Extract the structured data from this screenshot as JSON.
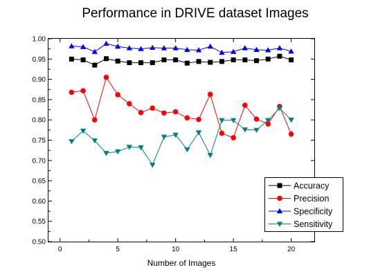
{
  "chart_data": {
    "type": "line",
    "title": "Performance in DRIVE dataset Images",
    "xlabel": "Number of Images",
    "ylabel": "",
    "xlim": [
      -1,
      22
    ],
    "ylim": [
      0.5,
      1.0
    ],
    "x_ticks": [
      0,
      5,
      10,
      15,
      20
    ],
    "y_ticks": [
      0.5,
      0.55,
      0.6,
      0.65,
      0.7,
      0.75,
      0.8,
      0.85,
      0.9,
      0.95,
      1.0
    ],
    "x_tick_labels": [
      "0",
      "5",
      "10",
      "15",
      "20"
    ],
    "y_tick_labels": [
      "0.50",
      "0.55",
      "0.60",
      "0.65",
      "0.70",
      "0.75",
      "0.80",
      "0.85",
      "0.90",
      "0.95",
      "1.00"
    ],
    "grid": false,
    "legend_position": "bottom-right",
    "x": [
      1,
      2,
      3,
      4,
      5,
      6,
      7,
      8,
      9,
      10,
      11,
      12,
      13,
      14,
      15,
      16,
      17,
      18,
      19,
      20
    ],
    "series": [
      {
        "name": "Accuracy",
        "color": "#000000",
        "marker": "square",
        "values": [
          0.95,
          0.948,
          0.935,
          0.951,
          0.945,
          0.941,
          0.941,
          0.941,
          0.948,
          0.948,
          0.94,
          0.944,
          0.942,
          0.944,
          0.948,
          0.948,
          0.946,
          0.95,
          0.957,
          0.948
        ]
      },
      {
        "name": "Precision",
        "color": "#ff0000",
        "marker": "circle",
        "values": [
          0.868,
          0.872,
          0.8,
          0.905,
          0.862,
          0.84,
          0.818,
          0.829,
          0.817,
          0.82,
          0.805,
          0.801,
          0.863,
          0.767,
          0.756,
          0.836,
          0.802,
          0.79,
          0.833,
          0.765
        ]
      },
      {
        "name": "Specificity",
        "color": "#0000ff",
        "marker": "triangle-up",
        "values": [
          0.982,
          0.98,
          0.968,
          0.988,
          0.981,
          0.977,
          0.975,
          0.978,
          0.977,
          0.977,
          0.973,
          0.972,
          0.981,
          0.966,
          0.968,
          0.977,
          0.973,
          0.972,
          0.977,
          0.969
        ]
      },
      {
        "name": "Sensitivity",
        "color": "#008080",
        "marker": "triangle-down",
        "values": [
          0.747,
          0.773,
          0.749,
          0.718,
          0.722,
          0.733,
          0.732,
          0.689,
          0.758,
          0.763,
          0.727,
          0.769,
          0.713,
          0.799,
          0.799,
          0.776,
          0.775,
          0.799,
          0.829,
          0.8
        ]
      }
    ]
  }
}
